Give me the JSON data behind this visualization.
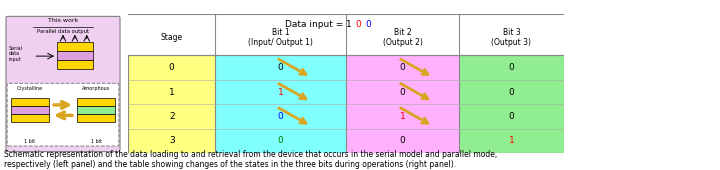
{
  "title": "Data input = 100",
  "col_headers": [
    "Stage",
    "Bit 1\n(Input/ Output 1)",
    "Bit 2\n(Output 2)",
    "Bit 3\n(Output 3)"
  ],
  "stages": [
    0,
    1,
    2,
    3
  ],
  "bit1_values": [
    "0",
    "1",
    "0",
    "0"
  ],
  "bit2_values": [
    "0",
    "0",
    "1",
    "0"
  ],
  "bit3_values": [
    "0",
    "0",
    "0",
    "1"
  ],
  "bit1_colors": [
    "black",
    "red",
    "blue",
    "green"
  ],
  "bit2_colors": [
    "black",
    "black",
    "red",
    "black"
  ],
  "bit3_colors": [
    "black",
    "black",
    "black",
    "red"
  ],
  "stage_col_color": "#FFFF80",
  "bit1_col_color": "#80FFFF",
  "bit2_col_color": "#FFB0FF",
  "bit3_col_color": "#90EE90",
  "left_panel_bg": "#F0D0F0",
  "caption": "Schematic representation of the data loading to and retrieval from the device that occurs in the serial model and parallel mode,\nrespectively (left panel) and the table showing changes of the states in the three bits during operations (right panel).",
  "fig_bg": "#FFFFFF"
}
